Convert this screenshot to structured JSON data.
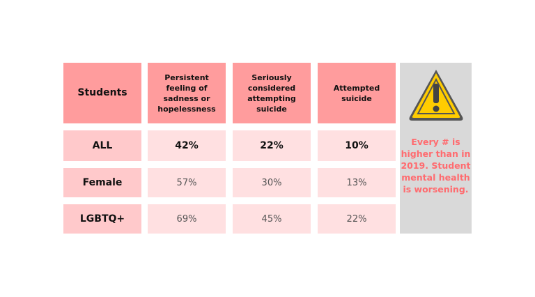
{
  "table": {
    "headers": [
      "Students",
      "Persistent feeling of sadness or hopelessness",
      "Seriously considered attempting suicide",
      "Attempted suicide"
    ],
    "rows": [
      {
        "label": "ALL",
        "values": [
          "42%",
          "22%",
          "10%"
        ]
      },
      {
        "label": "Female",
        "values": [
          "57%",
          "30%",
          "13%"
        ]
      },
      {
        "label": "LGBTQ+",
        "values": [
          "69%",
          "45%",
          "22%"
        ]
      }
    ]
  },
  "side_panel": {
    "icon": "warning-triangle-icon",
    "note": "Every # is higher than in 2019. Student mental health is worsening."
  },
  "colors": {
    "header": "#ff9c9d",
    "row_header": "#ffc9cb",
    "cell": "#ffe0e1",
    "panel": "#d9d9d9",
    "note": "#ff6b6f",
    "warning": "#ffcc00"
  }
}
